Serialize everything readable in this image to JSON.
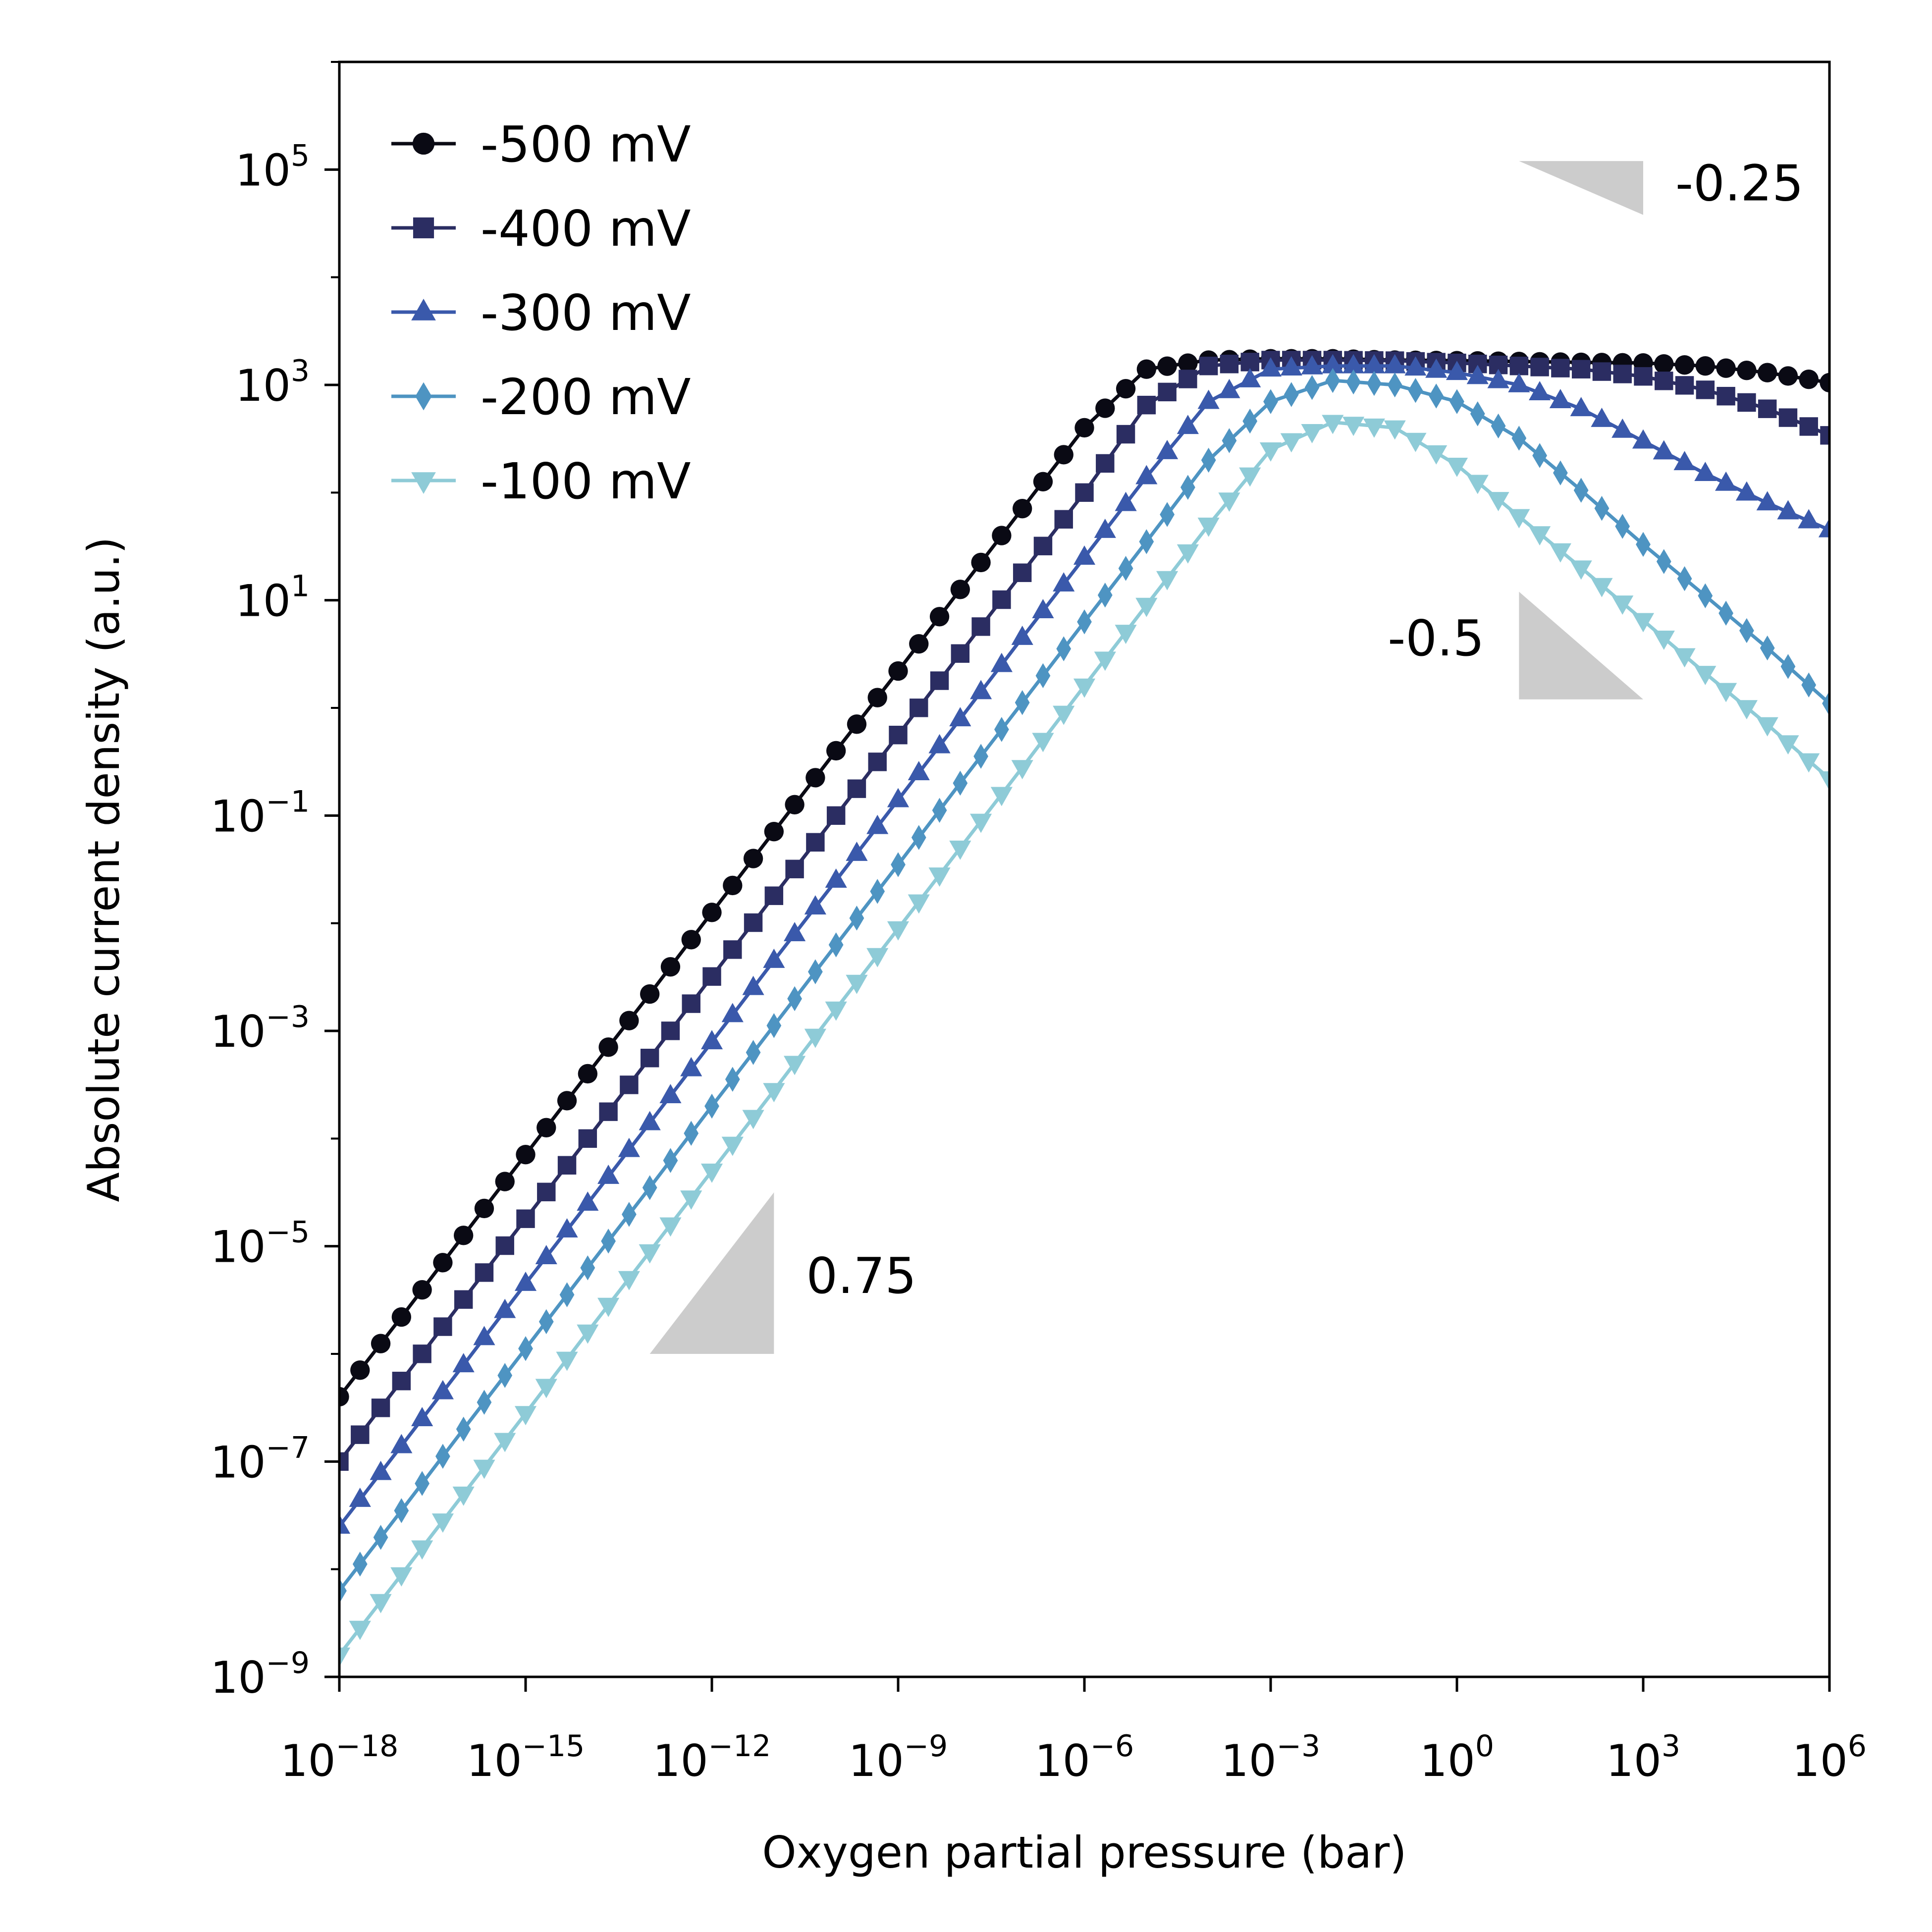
{
  "chart_data": {
    "type": "line",
    "title": "",
    "xlabel": "Oxygen partial pressure (bar)",
    "ylabel": "Absolute current density (a.u.)",
    "xscale": "log",
    "yscale": "log",
    "xlim": [
      1e-18,
      1000000.0
    ],
    "ylim": [
      1e-09,
      1000000.0
    ],
    "grid": false,
    "legend_position": "top-left",
    "x_ticks": [
      {
        "base": "10",
        "exp": "−18",
        "value": 1e-18
      },
      {
        "base": "10",
        "exp": "−15",
        "value": 1e-15
      },
      {
        "base": "10",
        "exp": "−12",
        "value": 1e-12
      },
      {
        "base": "10",
        "exp": "−9",
        "value": 1e-09
      },
      {
        "base": "10",
        "exp": "−6",
        "value": 1e-06
      },
      {
        "base": "10",
        "exp": "−3",
        "value": 0.001
      },
      {
        "base": "10",
        "exp": "0",
        "value": 1
      },
      {
        "base": "10",
        "exp": "3",
        "value": 1000.0
      },
      {
        "base": "10",
        "exp": "6",
        "value": 1000000.0
      }
    ],
    "y_ticks": [
      {
        "base": "10",
        "exp": "−9",
        "value": 1e-09
      },
      {
        "base": "10",
        "exp": "−7",
        "value": 1e-07
      },
      {
        "base": "10",
        "exp": "−5",
        "value": 1e-05
      },
      {
        "base": "10",
        "exp": "−3",
        "value": 0.001
      },
      {
        "base": "10",
        "exp": "−1",
        "value": 0.1
      },
      {
        "base": "10",
        "exp": "1",
        "value": 10
      },
      {
        "base": "10",
        "exp": "3",
        "value": 1000.0
      },
      {
        "base": "10",
        "exp": "5",
        "value": 100000.0
      }
    ],
    "x": [
      1e-18,
      1e-17,
      1e-16,
      1e-15,
      1e-14,
      1e-13,
      1e-12,
      1e-11,
      1e-10,
      1e-09,
      1e-08,
      1e-07,
      1e-06,
      1e-05,
      0.0001,
      0.001,
      0.01,
      0.1,
      1,
      10,
      100,
      1000.0,
      10000.0,
      100000.0,
      1000000.0
    ],
    "series": [
      {
        "name": "-500 mV",
        "color": "#0a0a14",
        "marker": "circle",
        "values": [
          4e-07,
          2.2e-06,
          1.26e-05,
          7.1e-05,
          0.0004,
          0.0022,
          0.0126,
          0.071,
          0.4,
          2.2,
          12.6,
          71,
          400,
          1400,
          1700,
          1750,
          1750,
          1700,
          1680,
          1650,
          1620,
          1600,
          1500,
          1300,
          1050
        ]
      },
      {
        "name": "-400 mV",
        "color": "#2b2d62",
        "marker": "square",
        "values": [
          1e-07,
          5.6e-07,
          3.2e-06,
          1.8e-05,
          0.0001,
          0.00056,
          0.0032,
          0.018,
          0.1,
          0.56,
          3.2,
          18,
          100,
          650,
          1500,
          1700,
          1700,
          1680,
          1600,
          1500,
          1400,
          1200,
          900,
          600,
          340
        ]
      },
      {
        "name": "-300 mV",
        "color": "#3a59ab",
        "marker": "triangle-up",
        "values": [
          2.5e-08,
          1.4e-07,
          7.9e-07,
          4.5e-06,
          2.5e-05,
          0.00014,
          0.00079,
          0.0045,
          0.025,
          0.14,
          0.79,
          4.5,
          25,
          140,
          700,
          1400,
          1500,
          1500,
          1300,
          1000,
          600,
          300,
          150,
          80,
          45
        ]
      },
      {
        "name": "-200 mV",
        "color": "#4e94c2",
        "marker": "diamond",
        "values": [
          6.3e-09,
          3.5e-08,
          2e-07,
          1.12e-06,
          6.3e-06,
          3.5e-05,
          0.0002,
          0.00112,
          0.0063,
          0.035,
          0.2,
          1.12,
          6.3,
          35,
          200,
          700,
          1100,
          1000,
          700,
          320,
          105,
          33,
          11,
          3.6,
          1.1
        ]
      },
      {
        "name": "-100 mV",
        "color": "#8ecbd7",
        "marker": "triangle-down",
        "values": [
          1.6e-09,
          8.9e-09,
          5e-08,
          2.8e-07,
          1.6e-06,
          8.9e-06,
          5e-05,
          0.00028,
          0.0016,
          0.0089,
          0.05,
          0.28,
          1.6,
          9,
          50,
          250,
          450,
          400,
          180,
          60,
          20,
          6.5,
          2.1,
          0.7,
          0.22
        ]
      }
    ],
    "annotations": [
      {
        "label": "-0.25",
        "slope": -0.25,
        "x_start": 10,
        "x_end": 1000,
        "y_at_start": 120000.0
      },
      {
        "label": "-0.5",
        "slope": -0.5,
        "x_start": 10,
        "x_end": 1000,
        "y_at_start": 12
      },
      {
        "label": "0.75",
        "slope": 0.75,
        "x_start": 1e-13,
        "x_end": 1e-11,
        "y_at_start": 1e-06
      }
    ],
    "annotation_color": "#cccccc"
  }
}
